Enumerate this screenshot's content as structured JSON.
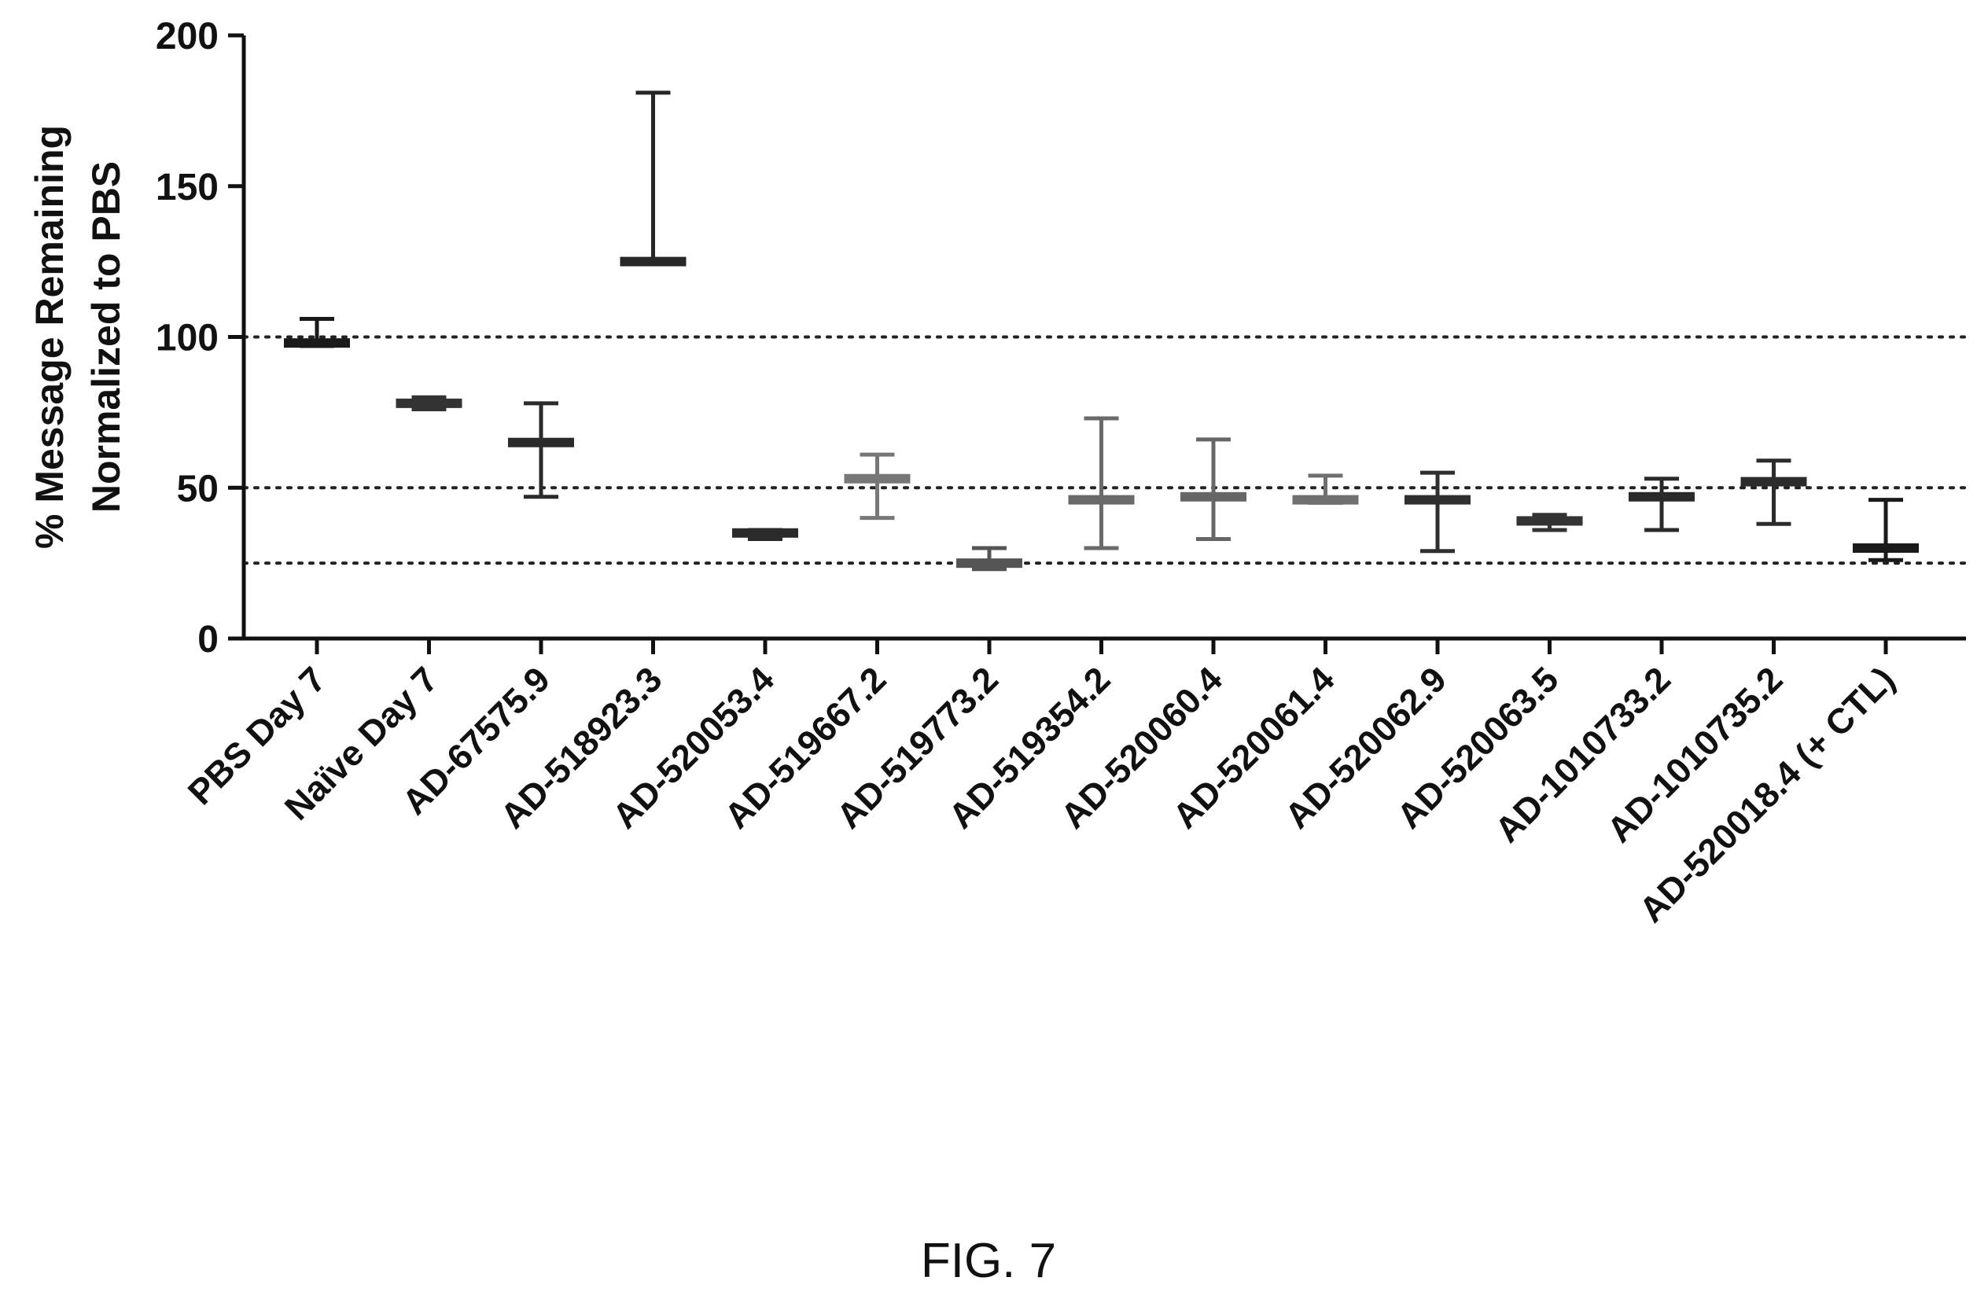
{
  "figure_caption": "FIG. 7",
  "chart_data": {
    "type": "scatter",
    "subtype": "error-bar-plot",
    "title": "",
    "xlabel": "",
    "ylabel_lines": [
      "% Message  Remaining",
      "Normalized to PBS"
    ],
    "ylim": [
      0,
      200
    ],
    "yticks": [
      0,
      50,
      100,
      150,
      200
    ],
    "grid": false,
    "reference_lines": [
      100,
      50,
      25
    ],
    "reference_line_style": "dotted",
    "categories": [
      "PBS Day 7",
      "Naïve Day 7",
      "AD-67575.9",
      "AD-518923.3",
      "AD-520053.4",
      "AD-519667.2",
      "AD-519773.2",
      "AD-519354.2",
      "AD-520060.4",
      "AD-520061.4",
      "AD-520062.9",
      "AD-520063.5",
      "AD-1010733.2",
      "AD-1010735.2",
      "AD-520018.4 (+ CTL)"
    ],
    "series": [
      {
        "mean": [
          98,
          78,
          65,
          125,
          35,
          53,
          25,
          46,
          47,
          46,
          46,
          39,
          47,
          52,
          30
        ],
        "upper": [
          106,
          80,
          78,
          181,
          36,
          61,
          30,
          73,
          66,
          54,
          55,
          41,
          53,
          59,
          46
        ],
        "lower": [
          97,
          76,
          47,
          125,
          33,
          40,
          23,
          30,
          33,
          45,
          29,
          36,
          36,
          38,
          26
        ],
        "colors": [
          "#1a1a1a",
          "#333333",
          "#2b2b2b",
          "#262626",
          "#2a2a2a",
          "#777777",
          "#555555",
          "#6a6a6a",
          "#666666",
          "#707070",
          "#2f2f2f",
          "#333333",
          "#2a2a2a",
          "#2c2c2c",
          "#1a1a1a"
        ]
      }
    ],
    "legend": "none"
  }
}
